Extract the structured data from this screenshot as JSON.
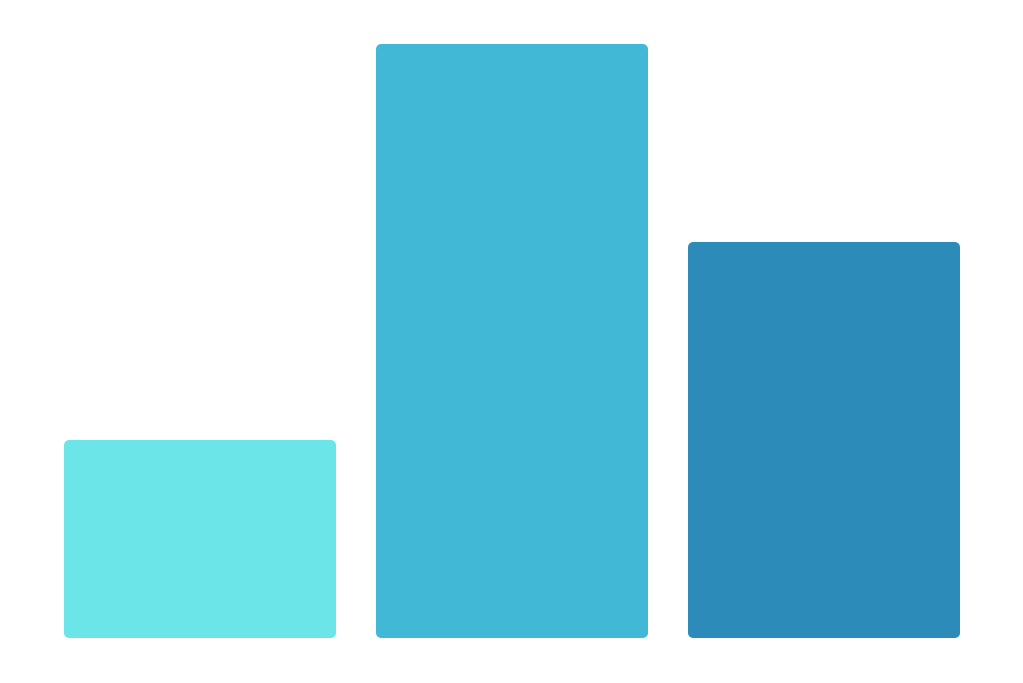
{
  "chart_data": {
    "type": "bar",
    "categories": [
      "",
      "",
      ""
    ],
    "values": [
      1,
      3,
      2
    ],
    "colors": [
      "#6CE5E8",
      "#41B8D5",
      "#2D8BBA"
    ],
    "ylim": [
      0,
      3
    ],
    "grid": false,
    "axes_visible": false,
    "legend": "none"
  }
}
